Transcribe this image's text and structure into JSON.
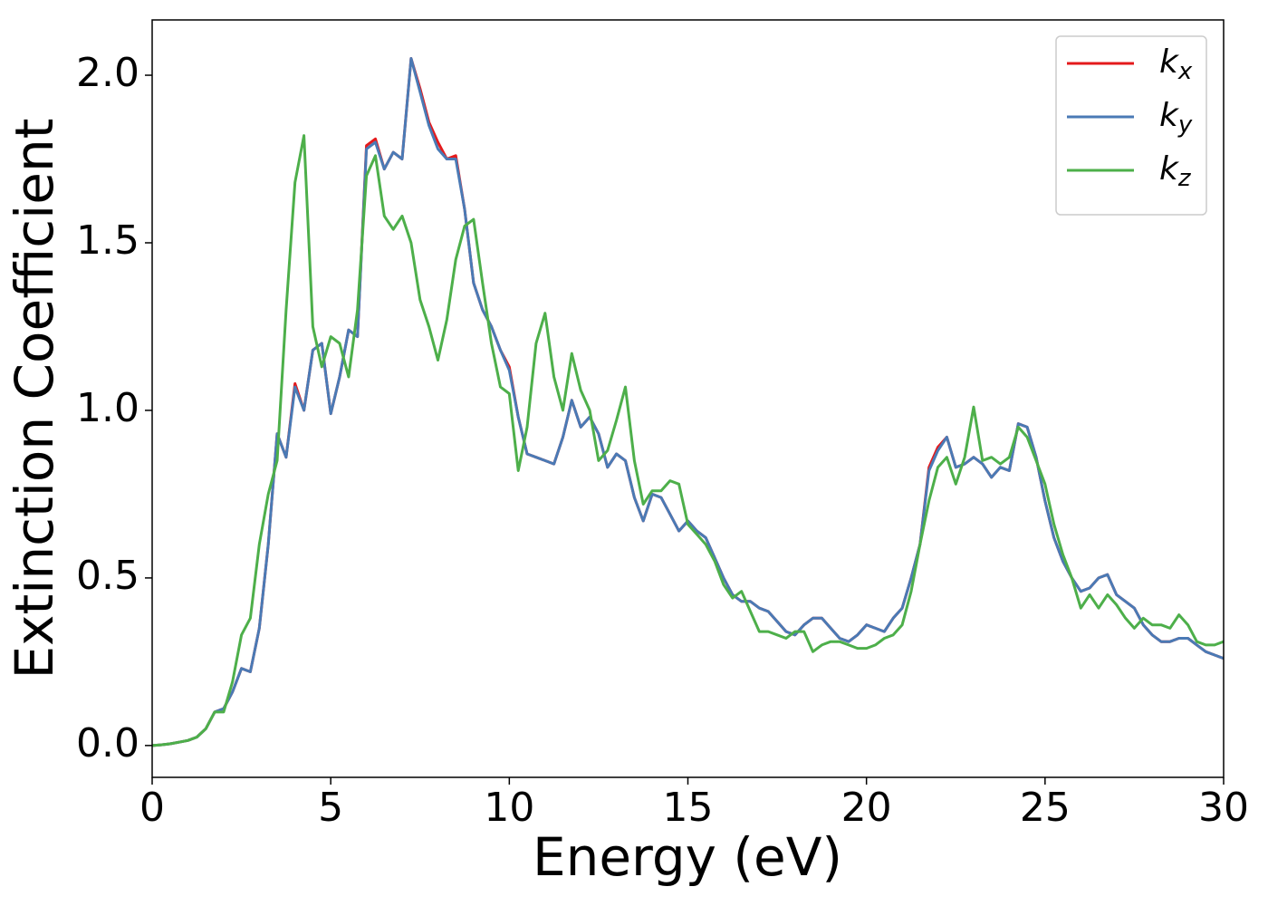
{
  "chart_data": {
    "type": "line",
    "xlabel": "Energy (eV)",
    "ylabel": "Extinction Coefficient",
    "xlim": [
      0,
      30
    ],
    "ylim": [
      -0.095,
      2.165
    ],
    "xticks": [
      0,
      5,
      10,
      15,
      20,
      25,
      30
    ],
    "yticks": [
      {
        "value": 0,
        "label": "0.0"
      },
      0.5,
      {
        "value": 1,
        "label": "1.0"
      },
      1.5,
      {
        "value": 2,
        "label": "2.0"
      }
    ],
    "legend": "upper right",
    "x": [
      0,
      0.25,
      0.5,
      0.75,
      1,
      1.25,
      1.5,
      1.75,
      2,
      2.25,
      2.5,
      2.75,
      3,
      3.25,
      3.5,
      3.75,
      4,
      4.25,
      4.5,
      4.75,
      5,
      5.25,
      5.5,
      5.75,
      6,
      6.25,
      6.5,
      6.75,
      7,
      7.25,
      7.5,
      7.75,
      8,
      8.25,
      8.5,
      8.75,
      9,
      9.25,
      9.5,
      9.75,
      10,
      10.25,
      10.5,
      10.75,
      11,
      11.25,
      11.5,
      11.75,
      12,
      12.25,
      12.5,
      12.75,
      13,
      13.25,
      13.5,
      13.75,
      14,
      14.25,
      14.5,
      14.75,
      15,
      15.25,
      15.5,
      15.75,
      16,
      16.25,
      16.5,
      16.75,
      17,
      17.25,
      17.5,
      17.75,
      18,
      18.25,
      18.5,
      18.75,
      19,
      19.25,
      19.5,
      19.75,
      20,
      20.25,
      20.5,
      20.75,
      21,
      21.25,
      21.5,
      21.75,
      22,
      22.25,
      22.5,
      22.75,
      23,
      23.25,
      23.5,
      23.75,
      24,
      24.25,
      24.5,
      24.75,
      25,
      25.25,
      25.5,
      25.75,
      26,
      26.25,
      26.5,
      26.75,
      27,
      27.25,
      27.5,
      27.75,
      28,
      28.25,
      28.5,
      28.75,
      29,
      29.25,
      29.5,
      29.75,
      30
    ],
    "series": [
      {
        "name": "kx",
        "color": "#e41a1c",
        "values": [
          0,
          0.002,
          0.005,
          0.01,
          0.015,
          0.025,
          0.05,
          0.1,
          0.11,
          0.16,
          0.23,
          0.22,
          0.35,
          0.6,
          0.93,
          0.86,
          1.08,
          1.0,
          1.18,
          1.2,
          0.99,
          1.1,
          1.24,
          1.22,
          1.79,
          1.81,
          1.72,
          1.77,
          1.75,
          2.05,
          1.96,
          1.86,
          1.8,
          1.75,
          1.76,
          1.6,
          1.38,
          1.3,
          1.25,
          1.18,
          1.13,
          0.98,
          0.87,
          0.86,
          0.85,
          0.84,
          0.92,
          1.03,
          0.95,
          0.98,
          0.93,
          0.83,
          0.87,
          0.85,
          0.74,
          0.67,
          0.75,
          0.74,
          0.69,
          0.64,
          0.67,
          0.64,
          0.62,
          0.56,
          0.5,
          0.45,
          0.43,
          0.43,
          0.41,
          0.4,
          0.37,
          0.34,
          0.33,
          0.36,
          0.38,
          0.38,
          0.35,
          0.32,
          0.31,
          0.33,
          0.36,
          0.35,
          0.34,
          0.38,
          0.41,
          0.5,
          0.6,
          0.83,
          0.89,
          0.92,
          0.83,
          0.84,
          0.86,
          0.84,
          0.8,
          0.83,
          0.82,
          0.96,
          0.95,
          0.86,
          0.73,
          0.62,
          0.55,
          0.5,
          0.46,
          0.47,
          0.5,
          0.51,
          0.45,
          0.43,
          0.41,
          0.36,
          0.33,
          0.31,
          0.31,
          0.32,
          0.32,
          0.3,
          0.28,
          0.27,
          0.26
        ]
      },
      {
        "name": "ky",
        "color": "#4a7ab5",
        "values": [
          0,
          0.002,
          0.005,
          0.01,
          0.015,
          0.025,
          0.05,
          0.1,
          0.11,
          0.16,
          0.23,
          0.22,
          0.35,
          0.6,
          0.93,
          0.86,
          1.07,
          1.0,
          1.18,
          1.2,
          0.99,
          1.1,
          1.24,
          1.22,
          1.78,
          1.8,
          1.72,
          1.77,
          1.75,
          2.05,
          1.95,
          1.85,
          1.78,
          1.75,
          1.75,
          1.6,
          1.38,
          1.3,
          1.25,
          1.18,
          1.12,
          0.98,
          0.87,
          0.86,
          0.85,
          0.84,
          0.92,
          1.03,
          0.95,
          0.98,
          0.93,
          0.83,
          0.87,
          0.85,
          0.74,
          0.67,
          0.75,
          0.74,
          0.69,
          0.64,
          0.67,
          0.64,
          0.62,
          0.56,
          0.5,
          0.45,
          0.43,
          0.43,
          0.41,
          0.4,
          0.37,
          0.34,
          0.33,
          0.36,
          0.38,
          0.38,
          0.35,
          0.32,
          0.31,
          0.33,
          0.36,
          0.35,
          0.34,
          0.38,
          0.41,
          0.5,
          0.6,
          0.82,
          0.88,
          0.92,
          0.83,
          0.84,
          0.86,
          0.84,
          0.8,
          0.83,
          0.82,
          0.96,
          0.95,
          0.86,
          0.73,
          0.62,
          0.55,
          0.5,
          0.46,
          0.47,
          0.5,
          0.51,
          0.45,
          0.43,
          0.41,
          0.36,
          0.33,
          0.31,
          0.31,
          0.32,
          0.32,
          0.3,
          0.28,
          0.27,
          0.26
        ]
      },
      {
        "name": "kz",
        "color": "#4daf4a",
        "values": [
          0,
          0.002,
          0.005,
          0.01,
          0.015,
          0.025,
          0.05,
          0.1,
          0.1,
          0.19,
          0.33,
          0.38,
          0.6,
          0.75,
          0.85,
          1.3,
          1.68,
          1.82,
          1.25,
          1.13,
          1.22,
          1.2,
          1.1,
          1.3,
          1.7,
          1.76,
          1.58,
          1.54,
          1.58,
          1.5,
          1.33,
          1.25,
          1.15,
          1.27,
          1.45,
          1.55,
          1.57,
          1.38,
          1.2,
          1.07,
          1.05,
          0.82,
          0.95,
          1.2,
          1.29,
          1.1,
          1.0,
          1.17,
          1.06,
          1.0,
          0.85,
          0.88,
          0.97,
          1.07,
          0.85,
          0.72,
          0.76,
          0.76,
          0.79,
          0.78,
          0.66,
          0.63,
          0.6,
          0.55,
          0.48,
          0.44,
          0.46,
          0.4,
          0.34,
          0.34,
          0.33,
          0.32,
          0.34,
          0.34,
          0.28,
          0.3,
          0.31,
          0.31,
          0.3,
          0.29,
          0.29,
          0.3,
          0.32,
          0.33,
          0.36,
          0.46,
          0.6,
          0.73,
          0.83,
          0.86,
          0.78,
          0.86,
          1.01,
          0.85,
          0.86,
          0.84,
          0.86,
          0.95,
          0.92,
          0.85,
          0.78,
          0.66,
          0.57,
          0.5,
          0.41,
          0.45,
          0.41,
          0.45,
          0.42,
          0.38,
          0.35,
          0.38,
          0.36,
          0.36,
          0.35,
          0.39,
          0.36,
          0.31,
          0.3,
          0.3,
          0.31
        ]
      }
    ]
  }
}
